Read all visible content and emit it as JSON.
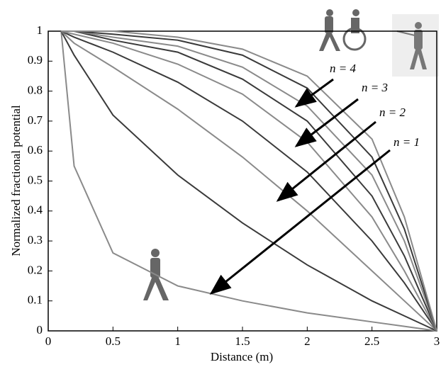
{
  "chart_data": {
    "type": "line",
    "xlabel": "Distance (m)",
    "ylabel": "Normalized fractional potential",
    "x": [
      0.1,
      0.2,
      0.5,
      1,
      1.5,
      2,
      2.5,
      2.75,
      3
    ],
    "series": [
      {
        "color": "#8a8a8a",
        "values": [
          1,
          0.55,
          0.26,
          0.15,
          0.1,
          0.06,
          0.03,
          0.015,
          0
        ]
      },
      {
        "color": "#3a3a3a",
        "values": [
          1,
          0.92,
          0.72,
          0.52,
          0.36,
          0.22,
          0.1,
          0.05,
          0
        ]
      },
      {
        "color": "#8a8a8a",
        "values": [
          1,
          0.96,
          0.88,
          0.74,
          0.58,
          0.4,
          0.2,
          0.1,
          0
        ]
      },
      {
        "color": "#3a3a3a",
        "values": [
          1,
          0.98,
          0.93,
          0.83,
          0.7,
          0.53,
          0.3,
          0.16,
          0
        ]
      },
      {
        "color": "#8a8a8a",
        "values": [
          1,
          0.99,
          0.96,
          0.89,
          0.79,
          0.63,
          0.38,
          0.2,
          0
        ]
      },
      {
        "color": "#3a3a3a",
        "values": [
          1,
          1,
          0.97,
          0.93,
          0.84,
          0.7,
          0.45,
          0.25,
          0
        ]
      },
      {
        "color": "#8a8a8a",
        "values": [
          1,
          1,
          0.98,
          0.95,
          0.88,
          0.75,
          0.52,
          0.3,
          0
        ]
      },
      {
        "color": "#3a3a3a",
        "values": [
          1,
          1,
          0.99,
          0.97,
          0.92,
          0.81,
          0.58,
          0.34,
          0
        ]
      },
      {
        "color": "#8a8a8a",
        "values": [
          1,
          1,
          1,
          0.98,
          0.94,
          0.85,
          0.64,
          0.38,
          0
        ]
      }
    ],
    "xlim": [
      0,
      3
    ],
    "xticks": [
      0,
      0.5,
      1,
      1.5,
      2,
      2.5,
      3
    ],
    "ylim": [
      0,
      1
    ],
    "yticks": [
      0,
      0.1,
      0.2,
      0.3,
      0.4,
      0.5,
      0.6,
      0.7,
      0.8,
      0.9,
      1
    ],
    "annotations": [
      "n = 4",
      "n = 3",
      "n = 2",
      "n = 1"
    ]
  }
}
